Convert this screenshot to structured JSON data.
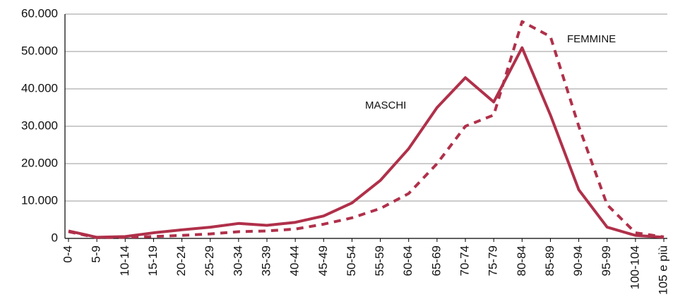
{
  "chart_data": {
    "type": "line",
    "categories": [
      "0-4",
      "5-9",
      "10-14",
      "15-19",
      "20-24",
      "25-29",
      "30-34",
      "35-39",
      "40-44",
      "45-49",
      "50-54",
      "55-59",
      "60-64",
      "65-69",
      "70-74",
      "75-79",
      "80-84",
      "85-89",
      "90-94",
      "95-99",
      "100-104",
      "105 e più"
    ],
    "series": [
      {
        "name": "MASCHI",
        "color": "#b0304a",
        "dash": false,
        "values": [
          2000,
          300,
          500,
          1500,
          2300,
          3000,
          4000,
          3500,
          4300,
          6000,
          9500,
          15500,
          24000,
          35000,
          43000,
          36500,
          51000,
          33000,
          13000,
          3000,
          800,
          300
        ]
      },
      {
        "name": "FEMMINE",
        "color": "#b0304a",
        "dash": true,
        "values": [
          1800,
          200,
          300,
          500,
          800,
          1200,
          1800,
          2000,
          2500,
          3800,
          5500,
          8000,
          12000,
          20000,
          30000,
          33000,
          58000,
          54000,
          30000,
          9000,
          1500,
          400
        ]
      }
    ],
    "ylim": [
      0,
      60000
    ],
    "yticks": [
      0,
      {
        "value": 10000,
        "label": "10.000"
      },
      {
        "value": 20000,
        "label": "20.000"
      },
      {
        "value": 30000,
        "label": "30.000"
      },
      {
        "value": 40000,
        "label": "40.000"
      },
      {
        "value": 50000,
        "label": "50.000"
      },
      {
        "value": 60000,
        "label": "60.000"
      }
    ],
    "grid": true
  }
}
